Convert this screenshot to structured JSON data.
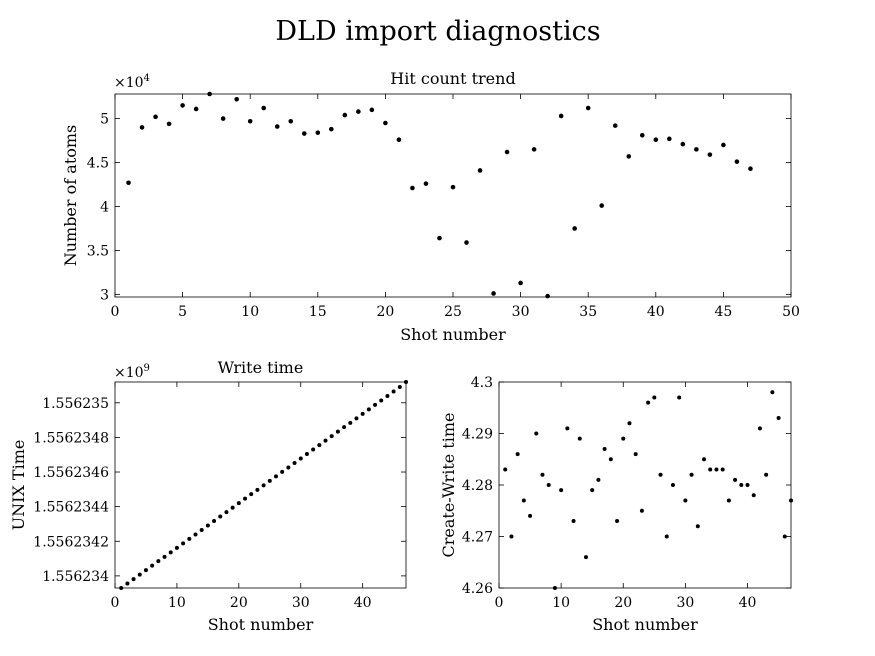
{
  "figure": {
    "title": "DLD import diagnostics"
  },
  "chart_data": [
    {
      "type": "scatter",
      "title": "Hit count trend",
      "xlabel": "Shot number",
      "ylabel": "Number of atoms",
      "y_exponent_label": "×10",
      "y_exponent_power": "4",
      "xlim": [
        0,
        50
      ],
      "ylim": [
        2.97,
        5.28
      ],
      "xticks": [
        0,
        5,
        10,
        15,
        20,
        25,
        30,
        35,
        40,
        45,
        50
      ],
      "xtick_labels": [
        "0",
        "5",
        "10",
        "15",
        "20",
        "25",
        "30",
        "35",
        "40",
        "45",
        "50"
      ],
      "yticks": [
        3,
        3.5,
        4,
        4.5,
        5
      ],
      "ytick_labels": [
        "3",
        "3.5",
        "4",
        "4.5",
        "5"
      ],
      "grid": false,
      "series": [
        {
          "x": [
            1,
            2,
            3,
            4,
            5,
            6,
            7,
            8,
            9,
            10,
            11,
            12,
            13,
            14,
            15,
            16,
            17,
            18,
            19,
            20,
            21,
            22,
            23,
            24,
            25,
            26,
            27,
            28,
            29,
            30,
            31,
            32,
            33,
            34,
            35,
            36,
            37,
            38,
            39,
            40,
            41,
            42,
            43,
            44,
            45,
            46,
            47
          ],
          "values": [
            4.27,
            4.9,
            5.02,
            4.94,
            5.15,
            5.11,
            5.28,
            5.0,
            5.22,
            4.97,
            5.12,
            4.91,
            4.97,
            4.83,
            4.84,
            4.88,
            5.04,
            5.08,
            5.1,
            4.95,
            4.76,
            4.21,
            4.26,
            3.64,
            4.22,
            3.59,
            4.41,
            3.01,
            4.62,
            3.13,
            4.65,
            2.98,
            5.03,
            3.75,
            5.12,
            4.01,
            4.92,
            4.57,
            4.81,
            4.76,
            4.77,
            4.71,
            4.65,
            4.59,
            4.7,
            4.51,
            4.43
          ]
        }
      ]
    },
    {
      "type": "scatter",
      "title": "Write time",
      "xlabel": "Shot number",
      "ylabel": "UNIX Time",
      "y_exponent_label": "×10",
      "y_exponent_power": "9",
      "xlim": [
        0,
        47
      ],
      "ylim": [
        1.55623393,
        1.55623512
      ],
      "xticks": [
        0,
        10,
        20,
        30,
        40
      ],
      "xtick_labels": [
        "0",
        "10",
        "20",
        "30",
        "40"
      ],
      "yticks": [
        1.556234,
        1.5562342,
        1.5562344,
        1.5562346,
        1.5562348,
        1.556235
      ],
      "ytick_labels": [
        "1.556234",
        "1.5562342",
        "1.5562344",
        "1.5562346",
        "1.5562348",
        "1.556235"
      ],
      "grid": false,
      "series": [
        {
          "x": [
            1,
            2,
            3,
            4,
            5,
            6,
            7,
            8,
            9,
            10,
            11,
            12,
            13,
            14,
            15,
            16,
            17,
            18,
            19,
            20,
            21,
            22,
            23,
            24,
            25,
            26,
            27,
            28,
            29,
            30,
            31,
            32,
            33,
            34,
            35,
            36,
            37,
            38,
            39,
            40,
            41,
            42,
            43,
            44,
            45,
            46,
            47
          ],
          "values": [
            1.55623393,
            1.556233956,
            1.556233981,
            1.556234007,
            1.556234033,
            1.556234059,
            1.556234085,
            1.55623411,
            1.556234136,
            1.556234162,
            1.556234188,
            1.556234214,
            1.556234239,
            1.556234265,
            1.556234291,
            1.556234317,
            1.556234343,
            1.556234368,
            1.556234394,
            1.55623442,
            1.556234446,
            1.556234472,
            1.556234497,
            1.556234523,
            1.556234549,
            1.556234575,
            1.556234601,
            1.556234626,
            1.556234652,
            1.556234678,
            1.556234704,
            1.55623473,
            1.556234755,
            1.556234781,
            1.556234807,
            1.556234833,
            1.556234859,
            1.556234884,
            1.55623491,
            1.556234936,
            1.556234962,
            1.556234988,
            1.556235013,
            1.556235039,
            1.556235065,
            1.556235091,
            1.55623512
          ]
        }
      ]
    },
    {
      "type": "scatter",
      "title": "",
      "xlabel": "Shot number",
      "ylabel": "Create-Write time",
      "xlim": [
        0,
        47
      ],
      "ylim": [
        4.26,
        4.3
      ],
      "xticks": [
        0,
        10,
        20,
        30,
        40
      ],
      "xtick_labels": [
        "0",
        "10",
        "20",
        "30",
        "40"
      ],
      "yticks": [
        4.26,
        4.27,
        4.28,
        4.29,
        4.3
      ],
      "ytick_labels": [
        "4.26",
        "4.27",
        "4.28",
        "4.29",
        "4.3"
      ],
      "grid": false,
      "series": [
        {
          "x": [
            1,
            2,
            3,
            4,
            5,
            6,
            7,
            8,
            9,
            10,
            11,
            12,
            13,
            14,
            15,
            16,
            17,
            18,
            19,
            20,
            21,
            22,
            23,
            24,
            25,
            26,
            27,
            28,
            29,
            30,
            31,
            32,
            33,
            34,
            35,
            36,
            37,
            38,
            39,
            40,
            41,
            42,
            43,
            44,
            45,
            46,
            47
          ],
          "values": [
            4.283,
            4.27,
            4.286,
            4.277,
            4.274,
            4.29,
            4.282,
            4.28,
            4.26,
            4.279,
            4.291,
            4.273,
            4.289,
            4.266,
            4.279,
            4.281,
            4.287,
            4.285,
            4.273,
            4.289,
            4.292,
            4.286,
            4.275,
            4.296,
            4.297,
            4.282,
            4.27,
            4.28,
            4.297,
            4.277,
            4.282,
            4.272,
            4.285,
            4.283,
            4.283,
            4.283,
            4.277,
            4.281,
            4.28,
            4.28,
            4.278,
            4.291,
            4.282,
            4.298,
            4.293,
            4.27,
            4.277
          ]
        }
      ]
    }
  ]
}
